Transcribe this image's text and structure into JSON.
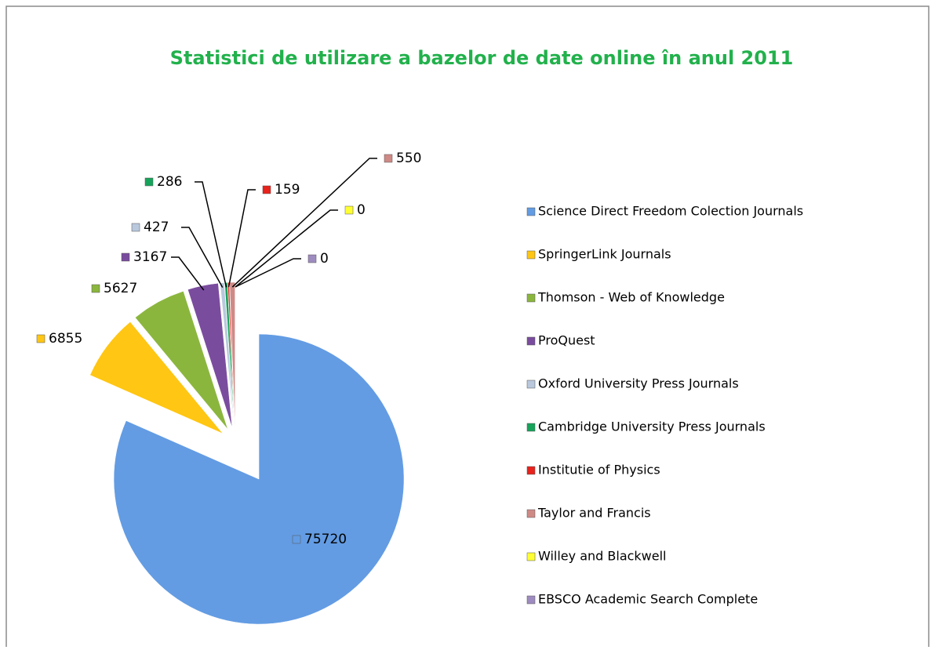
{
  "chart_data": {
    "type": "pie",
    "title": "Statistici de utilizare a bazelor de date online în anul 2011",
    "categories": [
      "Science Direct Freedom Colection Journals",
      "SpringerLink Journals",
      "Thomson - Web of Knowledge",
      "ProQuest",
      "Oxford University Press Journals",
      "Cambridge University Press Journals",
      "Institutie of Physics",
      "Taylor and Francis",
      "Willey and Blackwell",
      "EBSCO Academic Search Complete"
    ],
    "values": [
      75720,
      6855,
      5627,
      3167,
      427,
      286,
      159,
      550,
      0,
      0
    ],
    "colors": [
      "#639ce3",
      "#ffc613",
      "#8bb63e",
      "#7a4c9e",
      "#b9c8dd",
      "#17a35b",
      "#e8221c",
      "#cf8a86",
      "#ffff33",
      "#9e8bbf"
    ],
    "legend": "right"
  }
}
